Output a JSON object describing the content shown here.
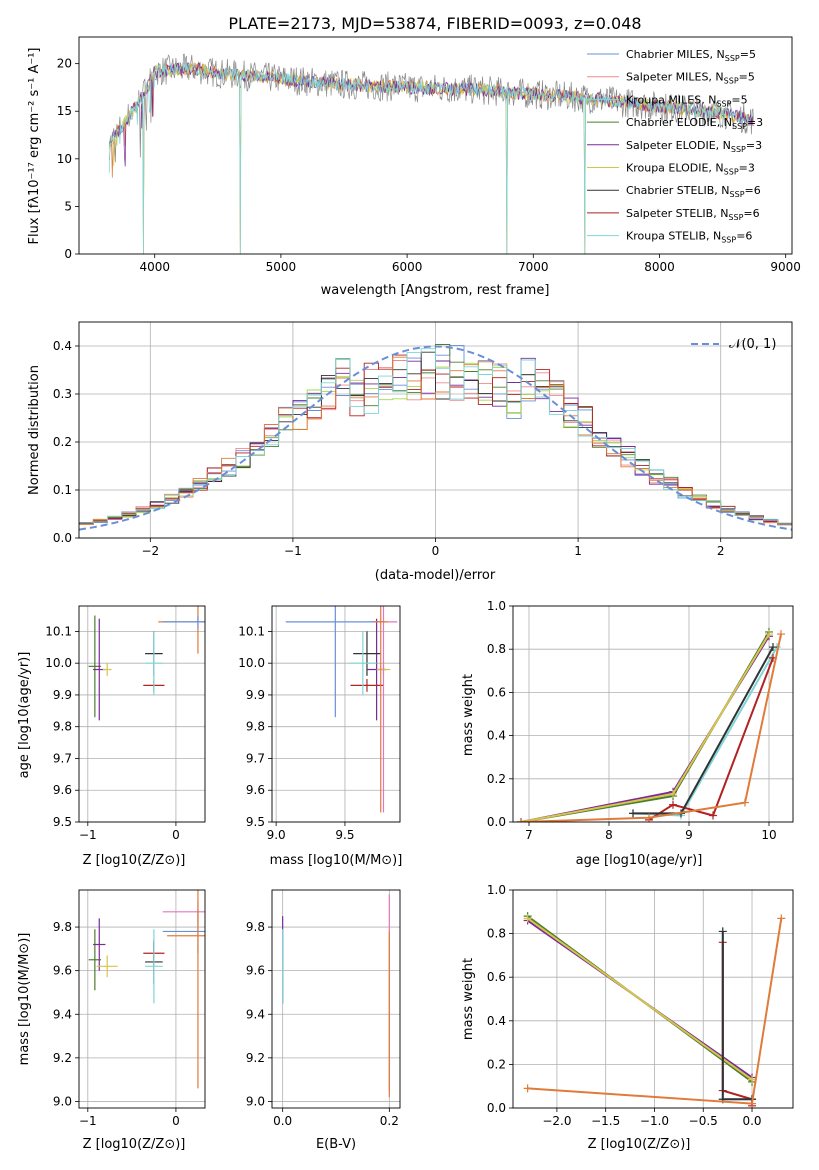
{
  "figure": {
    "title": "PLATE=2173, MJD=53874, FIBERID=0093, z=0.048"
  },
  "palette": [
    "#6a8fd8",
    "#f08a8a",
    "#4d7d2e",
    "#7a2a9a",
    "#d4c64a",
    "#333333",
    "#b22222",
    "#e377c2",
    "#a6d84a",
    "#7fd6d8",
    "#e07b39",
    "#888888"
  ],
  "chart_data": [
    {
      "id": "spectrum",
      "type": "line",
      "xlabel": "wavelength [Angstrom, rest frame]",
      "ylabel": "Flux [fλ10⁻¹⁷ erg cm⁻² s⁻¹ A⁻¹]",
      "xlim": [
        3400,
        9050
      ],
      "ylim": [
        0,
        22.8
      ],
      "xticks": [
        4000,
        5000,
        6000,
        7000,
        8000,
        9000
      ],
      "yticks": [
        0,
        5,
        10,
        15,
        20
      ],
      "grid": false,
      "legend": "top-right",
      "legend_entries": [
        {
          "label": "Chabrier MILES, N",
          "sub": "SSP",
          "suffix": "=5",
          "color": "#6a8fd8"
        },
        {
          "label": "Salpeter MILES, N",
          "sub": "SSP",
          "suffix": "=5",
          "color": "#f08a8a"
        },
        {
          "label": "Kroupa MILES, N",
          "sub": "SSP",
          "suffix": "=5",
          "color": "#7fd6d8"
        },
        {
          "label": "Chabrier ELODIE, N",
          "sub": "SSP",
          "suffix": "=3",
          "color": "#4d7d2e"
        },
        {
          "label": "Salpeter ELODIE, N",
          "sub": "SSP",
          "suffix": "=3",
          "color": "#7a2a9a"
        },
        {
          "label": "Kroupa ELODIE, N",
          "sub": "SSP",
          "suffix": "=3",
          "color": "#d4c64a"
        },
        {
          "label": "Chabrier STELIB, N",
          "sub": "SSP",
          "suffix": "=6",
          "color": "#333333"
        },
        {
          "label": "Salpeter STELIB, N",
          "sub": "SSP",
          "suffix": "=6",
          "color": "#b22222"
        },
        {
          "label": "Kroupa STELIB, N",
          "sub": "SSP",
          "suffix": "=6",
          "color": "#7fd6d8"
        }
      ],
      "spectrum_range": [
        3640,
        8750
      ],
      "continuum": [
        [
          3640,
          11.5
        ],
        [
          3900,
          16.5
        ],
        [
          4000,
          19.2
        ],
        [
          4300,
          19.5
        ],
        [
          4500,
          19.0
        ],
        [
          5000,
          18.4
        ],
        [
          5500,
          17.8
        ],
        [
          6000,
          17.5
        ],
        [
          6500,
          17.3
        ],
        [
          7000,
          16.8
        ],
        [
          7400,
          16.4
        ],
        [
          8000,
          15.5
        ],
        [
          8500,
          14.8
        ],
        [
          8750,
          14.0
        ]
      ],
      "absorption_spikes": [
        [
          3910,
          0
        ],
        [
          4680,
          0
        ],
        [
          6790,
          0
        ],
        [
          7410,
          0
        ]
      ]
    },
    {
      "id": "residuals",
      "type": "line",
      "xlabel": "(data-model)/error",
      "ylabel": "Normed distribution",
      "xlim": [
        -2.5,
        2.5
      ],
      "ylim": [
        0,
        0.45
      ],
      "xticks": [
        -2,
        -1,
        0,
        1,
        2
      ],
      "yticks": [
        0.0,
        0.1,
        0.2,
        0.3,
        0.4
      ],
      "grid": true,
      "legend": "top-right",
      "legend_entries": [
        {
          "label": "𝒩(0, 1)",
          "color": "#6a8fd8",
          "style": "dashed"
        }
      ],
      "bin_width": 0.1,
      "reference_curve": "normal(0,1)"
    },
    {
      "id": "age-vs-Z",
      "type": "scatter",
      "xlabel": "Z [log10(Z/Z⊙)]",
      "ylabel": "age  [log10(age/yr)]",
      "xlim": [
        -1.1,
        0.33
      ],
      "ylim": [
        9.5,
        10.18
      ],
      "xticks": [
        -1,
        0
      ],
      "yticks": [
        9.5,
        9.6,
        9.7,
        9.8,
        9.9,
        10.0,
        10.1
      ],
      "grid": true,
      "points": [
        {
          "x": -0.92,
          "y": 9.99,
          "xerr": 0.07,
          "yerr": 0.16,
          "color": "#4d7d2e"
        },
        {
          "x": -0.87,
          "y": 9.98,
          "xerr": 0.07,
          "yerr": 0.16,
          "color": "#7a2a9a"
        },
        {
          "x": -0.78,
          "y": 9.98,
          "xerr": 0.05,
          "yerr": 0.02,
          "color": "#d4c64a"
        },
        {
          "x": -0.25,
          "y": 10.03,
          "xerr": 0.1,
          "yerr": 0.07,
          "color": "#333333"
        },
        {
          "x": -0.25,
          "y": 9.93,
          "xerr": 0.12,
          "yerr": 0.02,
          "color": "#b22222"
        },
        {
          "x": -0.25,
          "y": 10.0,
          "xerr": 0.1,
          "yerr": 0.1,
          "color": "#7fd6d8"
        },
        {
          "x": 0.25,
          "y": 10.13,
          "xerr": 0.45,
          "yerr": 0.1,
          "color": "#e07b39"
        },
        {
          "x": 0.25,
          "y": 10.13,
          "xerr": 0.4,
          "yerr": 0.02,
          "color": "#6a8fd8"
        }
      ]
    },
    {
      "id": "age-vs-mass",
      "type": "scatter",
      "xlabel": "mass [log10(M/M⊙)]",
      "ylabel": "",
      "xlim": [
        8.97,
        9.9
      ],
      "ylim": [
        9.5,
        10.18
      ],
      "xticks": [
        9.0,
        9.5
      ],
      "yticks": [
        9.5,
        9.6,
        9.7,
        9.8,
        9.9,
        10.0,
        10.1
      ],
      "grid": true,
      "points": [
        {
          "x": 9.73,
          "y": 9.98,
          "xerr": 0.07,
          "yerr": 0.16,
          "color": "#7a2a9a"
        },
        {
          "x": 9.78,
          "y": 9.98,
          "xerr": 0.05,
          "yerr": 0.02,
          "color": "#d4c64a"
        },
        {
          "x": 9.66,
          "y": 10.03,
          "xerr": 0.1,
          "yerr": 0.07,
          "color": "#333333"
        },
        {
          "x": 9.66,
          "y": 9.93,
          "xerr": 0.12,
          "yerr": 0.02,
          "color": "#b22222"
        },
        {
          "x": 9.63,
          "y": 10.0,
          "xerr": 0.1,
          "yerr": 0.1,
          "color": "#7fd6d8"
        },
        {
          "x": 9.78,
          "y": 10.13,
          "xerr": 0.1,
          "yerr": 0.6,
          "color": "#e377c2"
        },
        {
          "x": 9.43,
          "y": 10.13,
          "xerr": 0.36,
          "yerr": 0.3,
          "color": "#6a8fd8"
        },
        {
          "x": 9.76,
          "y": 10.13,
          "xerr": 0.05,
          "yerr": 0.6,
          "color": "#e07b39"
        }
      ]
    },
    {
      "id": "massweight-vs-age",
      "type": "line",
      "xlabel": "age  [log10(age/yr)]",
      "ylabel": "mass weight",
      "xlim": [
        6.8,
        10.3
      ],
      "ylim": [
        0,
        1.0
      ],
      "xticks": [
        7,
        8,
        9,
        10
      ],
      "yticks": [
        0.0,
        0.2,
        0.4,
        0.6,
        0.8,
        1.0
      ],
      "grid": true,
      "series": [
        {
          "color": "#4d7d2e",
          "x": [
            6.9,
            8.8,
            10.0
          ],
          "y": [
            0.0,
            0.12,
            0.88
          ]
        },
        {
          "color": "#7a2a9a",
          "x": [
            6.9,
            8.8,
            10.0
          ],
          "y": [
            0.0,
            0.14,
            0.86
          ]
        },
        {
          "color": "#d4c64a",
          "x": [
            6.9,
            8.8,
            10.0
          ],
          "y": [
            0.0,
            0.13,
            0.87
          ]
        },
        {
          "color": "#7fd6d8",
          "x": [
            8.3,
            8.9,
            10.1
          ],
          "y": [
            0.04,
            0.03,
            0.81
          ]
        },
        {
          "color": "#b22222",
          "x": [
            8.5,
            8.8,
            9.3,
            10.05
          ],
          "y": [
            0.01,
            0.08,
            0.03,
            0.76
          ]
        },
        {
          "color": "#333333",
          "x": [
            8.3,
            8.9,
            10.05
          ],
          "y": [
            0.04,
            0.04,
            0.81
          ]
        },
        {
          "color": "#e07b39",
          "x": [
            6.9,
            8.5,
            9.7,
            10.15
          ],
          "y": [
            0.0,
            0.02,
            0.09,
            0.87
          ]
        }
      ]
    },
    {
      "id": "mass-vs-Z",
      "type": "scatter",
      "xlabel": "Z [log10(Z/Z⊙)]",
      "ylabel": "mass [log10(M/M⊙)]",
      "xlim": [
        -1.1,
        0.33
      ],
      "ylim": [
        8.97,
        9.97
      ],
      "xticks": [
        -1,
        0
      ],
      "yticks": [
        9.0,
        9.2,
        9.4,
        9.6,
        9.8
      ],
      "grid": true,
      "points": [
        {
          "x": -0.92,
          "y": 9.65,
          "xerr": 0.07,
          "yerr": 0.14,
          "color": "#4d7d2e"
        },
        {
          "x": -0.87,
          "y": 9.72,
          "xerr": 0.07,
          "yerr": 0.12,
          "color": "#7a2a9a"
        },
        {
          "x": -0.78,
          "y": 9.62,
          "xerr": 0.12,
          "yerr": 0.05,
          "color": "#d4c64a"
        },
        {
          "x": -0.25,
          "y": 9.64,
          "xerr": 0.1,
          "yerr": 0.1,
          "color": "#333333"
        },
        {
          "x": -0.25,
          "y": 9.68,
          "xerr": 0.12,
          "yerr": 0.05,
          "color": "#b22222"
        },
        {
          "x": -0.25,
          "y": 9.62,
          "xerr": 0.1,
          "yerr": 0.17,
          "color": "#7fd6d8"
        },
        {
          "x": 0.25,
          "y": 9.87,
          "xerr": 0.4,
          "yerr": 0.05,
          "color": "#e377c2"
        },
        {
          "x": 0.25,
          "y": 9.78,
          "xerr": 0.4,
          "yerr": 0.1,
          "color": "#6a8fd8"
        },
        {
          "x": 0.25,
          "y": 9.76,
          "xerr": 0.35,
          "yerr": 0.7,
          "color": "#e07b39"
        }
      ]
    },
    {
      "id": "mass-vs-EBV",
      "type": "scatter",
      "xlabel": "E(B-V)",
      "ylabel": "",
      "xlim": [
        -0.02,
        0.22
      ],
      "ylim": [
        8.97,
        9.97
      ],
      "xticks": [
        0.0,
        0.2
      ],
      "yticks": [
        9.0,
        9.2,
        9.4,
        9.6,
        9.8
      ],
      "grid": true,
      "points": [
        {
          "x": 0.0,
          "y": 9.65,
          "xerr": 0.001,
          "yerr": 0.2,
          "color": "#7a2a9a"
        },
        {
          "x": 0.0,
          "y": 9.62,
          "xerr": 0.001,
          "yerr": 0.17,
          "color": "#7fd6d8"
        },
        {
          "x": 0.2,
          "y": 9.5,
          "xerr": 0.001,
          "yerr": 0.45,
          "color": "#e377c2"
        },
        {
          "x": 0.2,
          "y": 9.4,
          "xerr": 0.001,
          "yerr": 0.38,
          "color": "#e07b39"
        }
      ]
    },
    {
      "id": "massweight-vs-Z",
      "type": "line",
      "xlabel": "Z [log10(Z/Z⊙)]",
      "ylabel": "mass weight",
      "xlim": [
        -2.45,
        0.42
      ],
      "ylim": [
        0,
        1.0
      ],
      "xticks": [
        -2.0,
        -1.5,
        -1.0,
        -0.5,
        0.0
      ],
      "yticks": [
        0.0,
        0.2,
        0.4,
        0.6,
        0.8,
        1.0
      ],
      "grid": true,
      "series": [
        {
          "color": "#4d7d2e",
          "x": [
            -2.3,
            0.0
          ],
          "y": [
            0.88,
            0.12
          ]
        },
        {
          "color": "#7a2a9a",
          "x": [
            -2.3,
            0.0
          ],
          "y": [
            0.86,
            0.14
          ]
        },
        {
          "color": "#d4c64a",
          "x": [
            -2.3,
            0.0
          ],
          "y": [
            0.87,
            0.13
          ]
        },
        {
          "color": "#7fd6d8",
          "x": [
            -0.3,
            -0.3,
            0.0
          ],
          "y": [
            0.81,
            0.04,
            0.04
          ]
        },
        {
          "color": "#b22222",
          "x": [
            -0.3,
            -0.3,
            0.0,
            0.0
          ],
          "y": [
            0.76,
            0.08,
            0.04,
            0.01
          ]
        },
        {
          "color": "#333333",
          "x": [
            -0.3,
            -0.3,
            0.0
          ],
          "y": [
            0.81,
            0.04,
            0.04
          ]
        },
        {
          "color": "#e07b39",
          "x": [
            -2.3,
            0.0,
            0.3
          ],
          "y": [
            0.09,
            0.02,
            0.87
          ]
        }
      ]
    }
  ]
}
